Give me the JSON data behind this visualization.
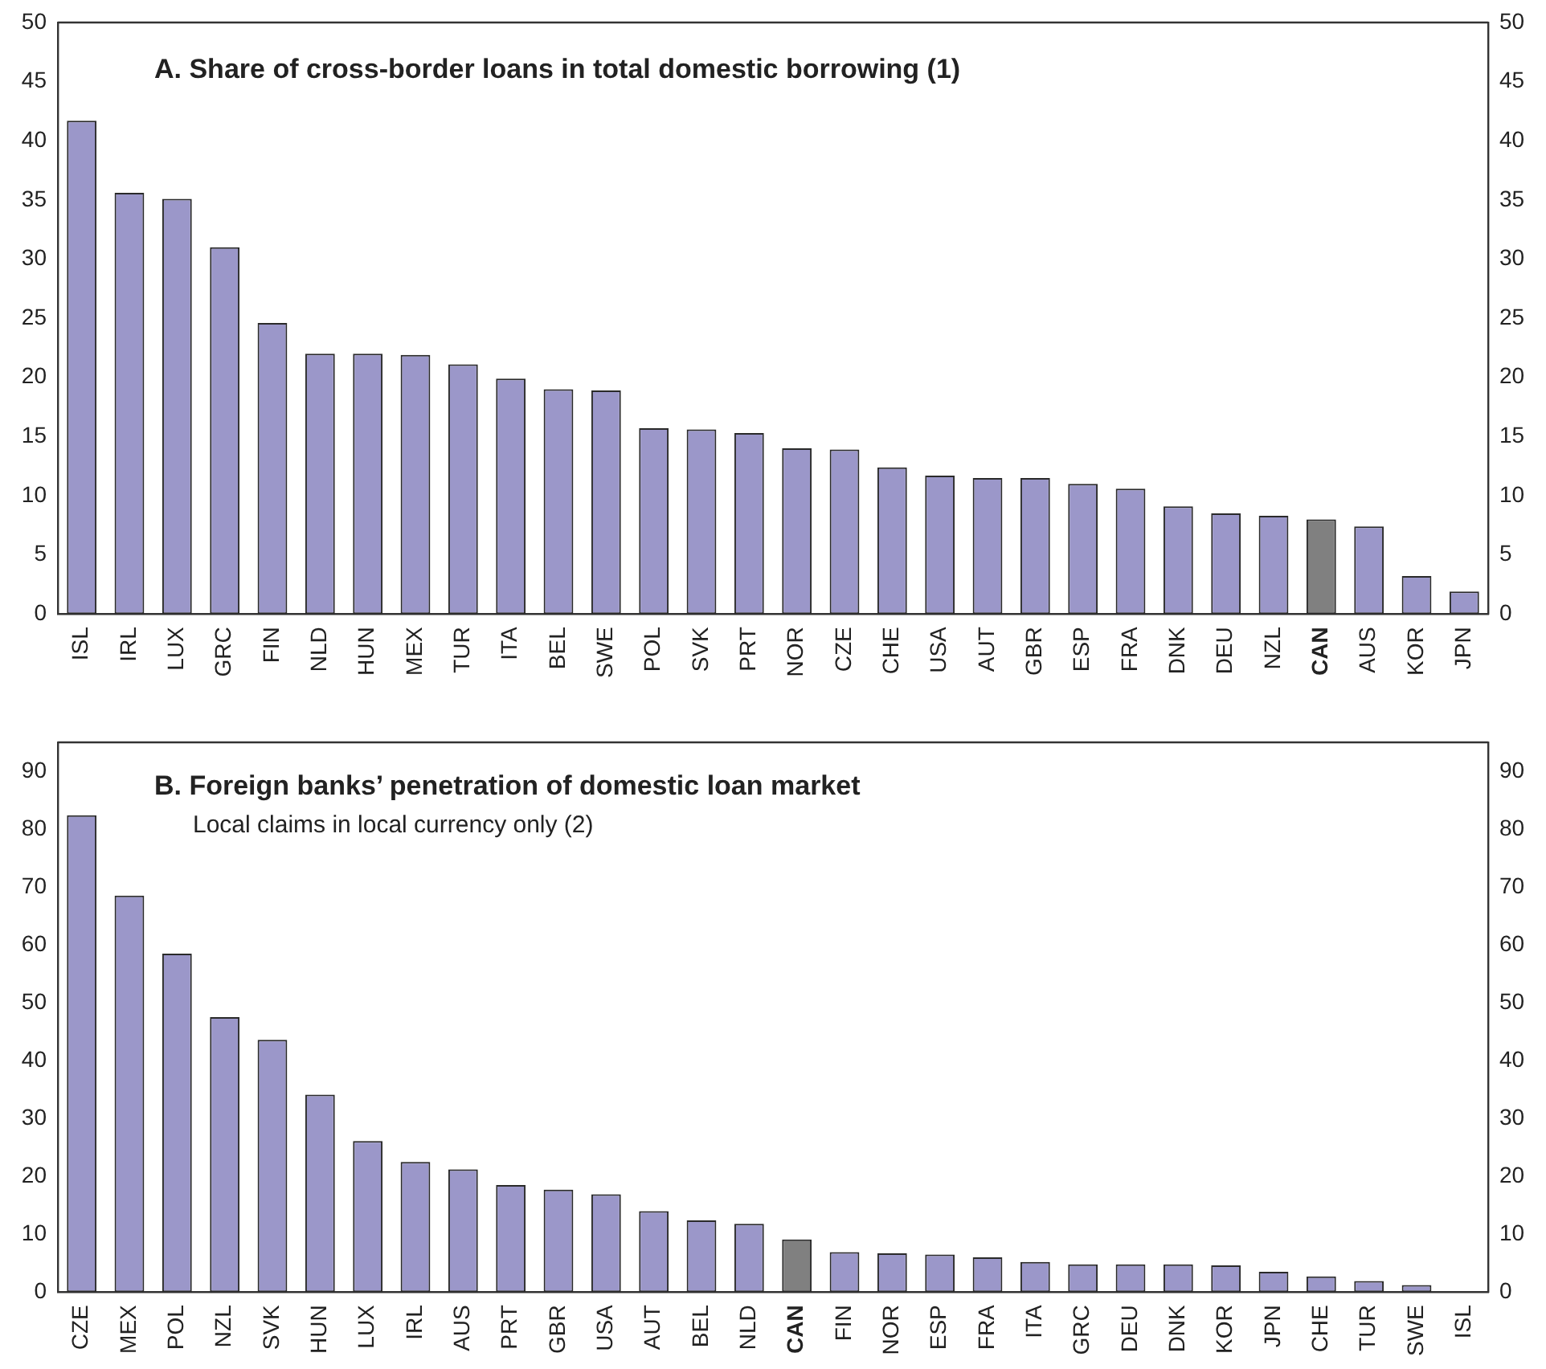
{
  "chart_data": [
    {
      "type": "bar",
      "title": "A. Share of cross-border loans in total domestic borrowing (1)",
      "categories": [
        "ISL",
        "IRL",
        "LUX",
        "GRC",
        "FIN",
        "NLD",
        "HUN",
        "MEX",
        "TUR",
        "ITA",
        "BEL",
        "SWE",
        "POL",
        "SVK",
        "PRT",
        "NOR",
        "CZE",
        "CHE",
        "USA",
        "AUT",
        "GBR",
        "ESP",
        "FRA",
        "DNK",
        "DEU",
        "NZL",
        "CAN",
        "AUS",
        "KOR",
        "JPN"
      ],
      "values": [
        41.7,
        35.6,
        35.1,
        31.0,
        24.6,
        22.0,
        22.0,
        21.9,
        21.1,
        19.9,
        19.0,
        18.9,
        15.7,
        15.6,
        15.3,
        14.0,
        13.9,
        12.4,
        11.7,
        11.5,
        11.5,
        11.0,
        10.6,
        9.1,
        8.5,
        8.3,
        8.0,
        7.4,
        3.2,
        1.9
      ],
      "colors": [
        "#9b97c9",
        "#9b97c9",
        "#9b97c9",
        "#9b97c9",
        "#9b97c9",
        "#9b97c9",
        "#9b97c9",
        "#9b97c9",
        "#9b97c9",
        "#9b97c9",
        "#9b97c9",
        "#9b97c9",
        "#9b97c9",
        "#9b97c9",
        "#9b97c9",
        "#9b97c9",
        "#9b97c9",
        "#9b97c9",
        "#9b97c9",
        "#9b97c9",
        "#9b97c9",
        "#9b97c9",
        "#9b97c9",
        "#9b97c9",
        "#9b97c9",
        "#9b97c9",
        "#808080",
        "#9b97c9",
        "#9b97c9",
        "#9b97c9"
      ],
      "ylim": [
        0,
        50
      ],
      "yticks": [
        0,
        5,
        10,
        15,
        20,
        25,
        30,
        35,
        40,
        45,
        50
      ],
      "y2lim": [
        0,
        50
      ],
      "y2ticks": [
        0,
        5,
        10,
        15,
        20,
        25,
        30,
        35,
        40,
        45,
        50
      ],
      "grid": false,
      "legend": false
    },
    {
      "type": "bar",
      "title": "B. Foreign banks’ penetration of domestic loan market",
      "subtitle": "Local claims in local currency only (2)",
      "categories": [
        "CZE",
        "MEX",
        "POL",
        "NZL",
        "SVK",
        "HUN",
        "LUX",
        "IRL",
        "AUS",
        "PRT",
        "GBR",
        "USA",
        "AUT",
        "BEL",
        "NLD",
        "CAN",
        "FIN",
        "NOR",
        "ESP",
        "FRA",
        "ITA",
        "GRC",
        "DEU",
        "DNK",
        "KOR",
        "JPN",
        "CHE",
        "TUR",
        "SWE",
        "ISL"
      ],
      "values": [
        82.4,
        68.5,
        58.5,
        47.5,
        43.6,
        34.1,
        26.1,
        22.5,
        21.2,
        18.5,
        17.7,
        16.9,
        14.0,
        12.4,
        11.8,
        9.1,
        6.9,
        6.7,
        6.5,
        6.0,
        5.2,
        4.8,
        4.8,
        4.8,
        4.6,
        3.5,
        2.7,
        1.9,
        1.2,
        0
      ],
      "colors": [
        "#9b97c9",
        "#9b97c9",
        "#9b97c9",
        "#9b97c9",
        "#9b97c9",
        "#9b97c9",
        "#9b97c9",
        "#9b97c9",
        "#9b97c9",
        "#9b97c9",
        "#9b97c9",
        "#9b97c9",
        "#9b97c9",
        "#9b97c9",
        "#9b97c9",
        "#808080",
        "#9b97c9",
        "#9b97c9",
        "#9b97c9",
        "#9b97c9",
        "#9b97c9",
        "#9b97c9",
        "#9b97c9",
        "#9b97c9",
        "#9b97c9",
        "#9b97c9",
        "#9b97c9",
        "#9b97c9",
        "#9b97c9",
        "#9b97c9"
      ],
      "ylim": [
        0,
        95
      ],
      "yticks": [
        0,
        10,
        20,
        30,
        40,
        50,
        60,
        70,
        80,
        90
      ],
      "y2lim": [
        0,
        95
      ],
      "y2ticks": [
        0,
        10,
        20,
        30,
        40,
        50,
        60,
        70,
        80,
        90
      ],
      "grid": false,
      "legend": false
    }
  ]
}
